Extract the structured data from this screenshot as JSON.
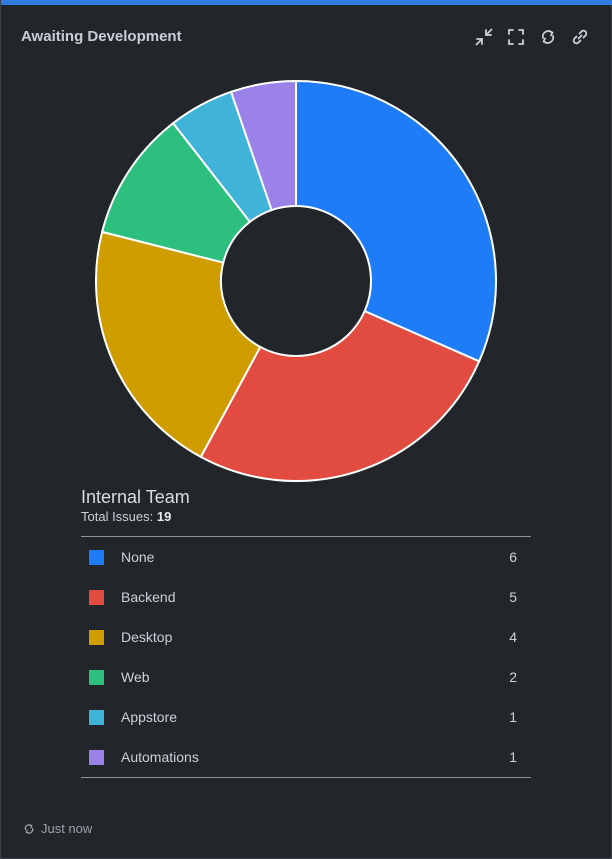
{
  "widget": {
    "title": "Awaiting Development",
    "accent_color": "#2f7de1",
    "tools": [
      {
        "name": "collapse-icon"
      },
      {
        "name": "fullscreen-icon"
      },
      {
        "name": "refresh-icon"
      },
      {
        "name": "link-icon"
      }
    ]
  },
  "legend": {
    "team_name": "Internal Team",
    "total_label": "Total Issues:",
    "total_value": "19"
  },
  "chart_data": {
    "type": "pie",
    "variant": "donut",
    "categories": [
      "None",
      "Backend",
      "Desktop",
      "Web",
      "Appstore",
      "Automations"
    ],
    "values": [
      6,
      5,
      4,
      2,
      1,
      1
    ],
    "colors": [
      "#1f7cf7",
      "#e24b3f",
      "#d09d00",
      "#2cbf7e",
      "#40b4d8",
      "#9a82e8"
    ]
  },
  "footer": {
    "updated_text": "Just now"
  }
}
